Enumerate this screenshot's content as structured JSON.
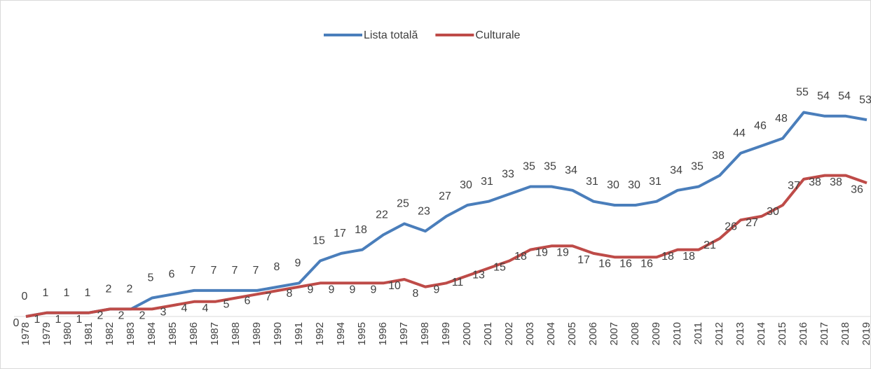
{
  "chart_data": {
    "type": "line",
    "categories": [
      "1978",
      "1979",
      "1980",
      "1981",
      "1982",
      "1983",
      "1984",
      "1985",
      "1986",
      "1987",
      "1988",
      "1989",
      "1990",
      "1991",
      "1992",
      "1994",
      "1995",
      "1996",
      "1997",
      "1998",
      "1999",
      "2000",
      "2001",
      "2002",
      "2003",
      "2004",
      "2005",
      "2006",
      "2007",
      "2008",
      "2009",
      "2010",
      "2011",
      "2012",
      "2013",
      "2014",
      "2015",
      "2016",
      "2017",
      "2018",
      "2019"
    ],
    "series": [
      {
        "name": "Lista totală",
        "color": "#4a7ebb",
        "values": [
          0,
          1,
          1,
          1,
          2,
          2,
          5,
          6,
          7,
          7,
          7,
          7,
          8,
          9,
          15,
          17,
          18,
          22,
          25,
          23,
          27,
          30,
          31,
          33,
          35,
          35,
          34,
          31,
          30,
          30,
          31,
          34,
          35,
          38,
          44,
          46,
          48,
          55,
          54,
          54,
          53
        ]
      },
      {
        "name": "Culturale",
        "color": "#be4b48",
        "values": [
          0,
          1,
          1,
          1,
          2,
          2,
          2,
          3,
          4,
          4,
          5,
          6,
          7,
          8,
          9,
          9,
          9,
          9,
          10,
          8,
          9,
          11,
          13,
          15,
          18,
          19,
          19,
          17,
          16,
          16,
          16,
          18,
          18,
          21,
          26,
          27,
          30,
          37,
          38,
          38,
          36
        ]
      }
    ],
    "ylim": [
      0,
      60
    ],
    "legend": "top"
  }
}
